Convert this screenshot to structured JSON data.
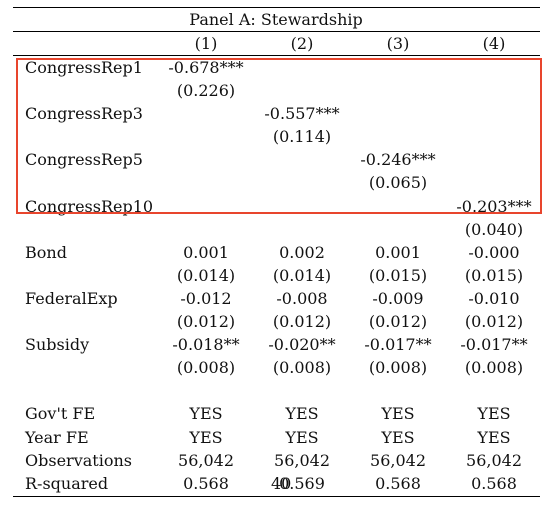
{
  "panel_title": "Panel A: Stewardship",
  "columns": [
    "(1)",
    "(2)",
    "(3)",
    "(4)"
  ],
  "main_rows": [
    {
      "label": "CongressRep1",
      "coef": "-0.678***",
      "se": "(0.226)",
      "col": 0
    },
    {
      "label": "CongressRep3",
      "coef": "-0.557***",
      "se": "(0.114)",
      "col": 1
    },
    {
      "label": "CongressRep5",
      "coef": "-0.246***",
      "se": "(0.065)",
      "col": 2
    },
    {
      "label": "CongressRep10",
      "coef": "-0.203***",
      "se": "(0.040)",
      "col": 3
    }
  ],
  "control_rows": [
    {
      "label": "Bond",
      "coefs": [
        "0.001",
        "0.002",
        "0.001",
        "-0.000"
      ],
      "ses": [
        "(0.014)",
        "(0.014)",
        "(0.015)",
        "(0.015)"
      ]
    },
    {
      "label": "FederalExp",
      "coefs": [
        "-0.012",
        "-0.008",
        "-0.009",
        "-0.010"
      ],
      "ses": [
        "(0.012)",
        "(0.012)",
        "(0.012)",
        "(0.012)"
      ]
    },
    {
      "label": "Subsidy",
      "coefs": [
        "-0.018**",
        "-0.020**",
        "-0.017**",
        "-0.017**"
      ],
      "ses": [
        "(0.008)",
        "(0.008)",
        "(0.008)",
        "(0.008)"
      ]
    }
  ],
  "footer_rows": [
    {
      "label": "Gov't FE",
      "values": [
        "YES",
        "YES",
        "YES",
        "YES"
      ]
    },
    {
      "label": "Year FE",
      "values": [
        "YES",
        "YES",
        "YES",
        "YES"
      ]
    },
    {
      "label": "Observations",
      "values": [
        "56,042",
        "56,042",
        "56,042",
        "56,042"
      ]
    },
    {
      "label": "R-squared",
      "values": [
        "0.568",
        "0.569",
        "0.568",
        "0.568"
      ]
    }
  ],
  "page_number": "40",
  "highlight_color": "#e8452d"
}
